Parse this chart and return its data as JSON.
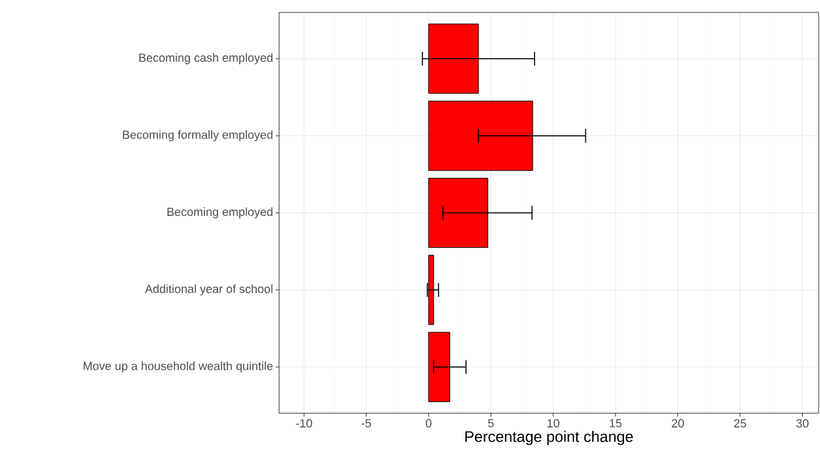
{
  "chart_data": {
    "type": "bar",
    "orientation": "horizontal",
    "xlabel": "Percentage point change",
    "categories": [
      "Becoming cash employed",
      "Becoming formally employed",
      "Becoming employed",
      "Additional year of school",
      "Move up a household wealth quintile"
    ],
    "values": [
      4.0,
      8.35,
      4.75,
      0.4,
      1.7
    ],
    "errors": [
      [
        -0.5,
        8.5
      ],
      [
        4.0,
        12.6
      ],
      [
        1.15,
        8.3
      ],
      [
        -0.1,
        0.8
      ],
      [
        0.4,
        3.0
      ]
    ],
    "color": "#ff0000",
    "xlim": [
      -12,
      31.3
    ],
    "xticks": [
      -10,
      -5,
      0,
      5,
      10,
      15,
      20,
      25,
      30
    ],
    "grid": true
  }
}
